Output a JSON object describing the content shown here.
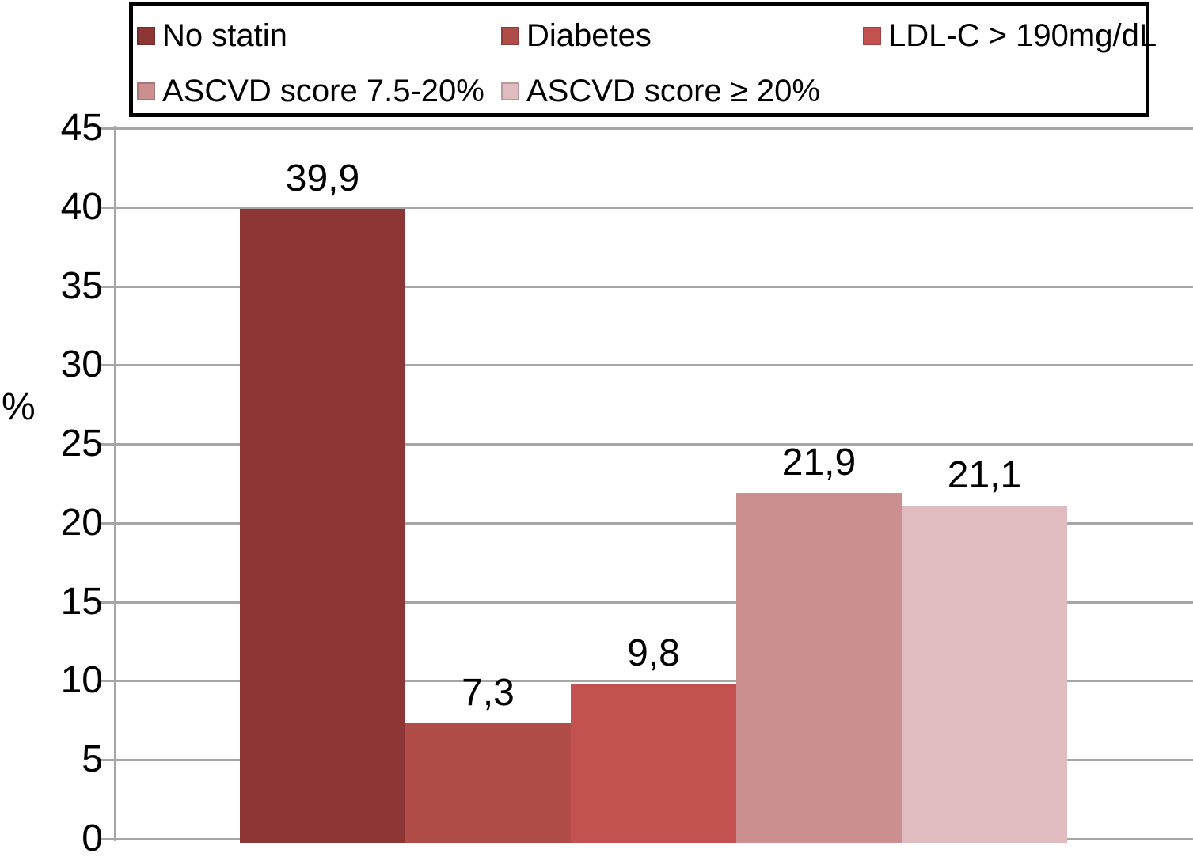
{
  "chart_data": {
    "type": "bar",
    "title": "",
    "xlabel": "",
    "ylabel": "%",
    "ylim": [
      0,
      45
    ],
    "ytick_step": 5,
    "yticks": [
      0,
      5,
      10,
      15,
      20,
      25,
      30,
      35,
      40,
      45
    ],
    "ytick_labels": [
      "0",
      "5",
      "10",
      "15",
      "20",
      "25",
      "30",
      "35",
      "40",
      "45"
    ],
    "grid": true,
    "legend_position": "top",
    "decimal_separator": ",",
    "series": [
      {
        "name": "No statin",
        "value": 39.9,
        "value_label": "39,9",
        "color": "#8e3635"
      },
      {
        "name": "Diabetes",
        "value": 7.3,
        "value_label": "7,3",
        "color": "#b04c48"
      },
      {
        "name": "LDL-C > 190mg/dL",
        "value": 9.8,
        "value_label": "9,8",
        "color": "#c25150"
      },
      {
        "name": "ASCVD score 7.5-20%",
        "value": 21.9,
        "value_label": "21,9",
        "color": "#cc8f90"
      },
      {
        "name": "ASCVD score ≥ 20%",
        "value": 21.1,
        "value_label": "21,1",
        "color": "#e0bcc0"
      }
    ],
    "legend_rows": [
      [
        0,
        1,
        2
      ],
      [
        3,
        4
      ]
    ]
  },
  "styles": {
    "grid_color": "#a6a6a6",
    "axis_color": "#a6a6a6",
    "legend_border_color": "#000000",
    "text_color": "#000000",
    "background": "#ffffff"
  }
}
